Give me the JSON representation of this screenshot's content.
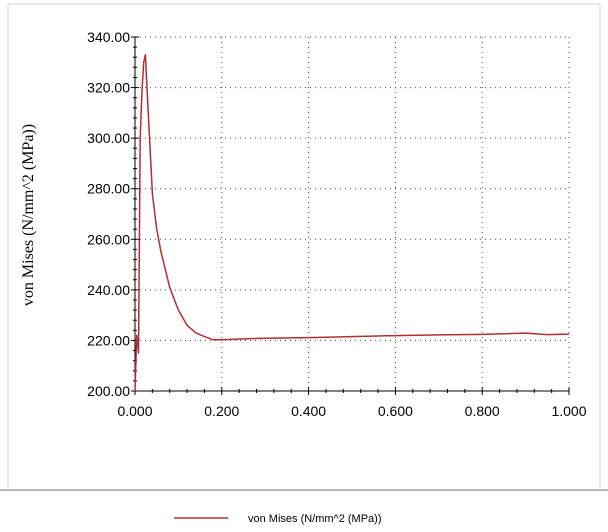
{
  "chart_data": {
    "type": "line",
    "title": "",
    "xlabel": "",
    "ylabel": "von Mises (N/mm^2 (MPa))",
    "xlim": [
      0,
      1
    ],
    "ylim": [
      200,
      340
    ],
    "x_ticks": [
      "0.000",
      "0.200",
      "0.400",
      "0.600",
      "0.800",
      "1.000"
    ],
    "y_ticks": [
      "200.00",
      "220.00",
      "240.00",
      "260.00",
      "280.00",
      "300.00",
      "320.00",
      "340.00"
    ],
    "grid": true,
    "legend_position": "bottom-center",
    "series": [
      {
        "name": "von Mises (N/mm^2 (MPa))",
        "color": "#b03030",
        "x": [
          0.0,
          0.004,
          0.008,
          0.012,
          0.016,
          0.02,
          0.024,
          0.03,
          0.04,
          0.05,
          0.06,
          0.08,
          0.1,
          0.12,
          0.14,
          0.16,
          0.18,
          0.2,
          0.25,
          0.3,
          0.4,
          0.5,
          0.6,
          0.7,
          0.8,
          0.9,
          0.95,
          1.0
        ],
        "y": [
          200,
          222,
          215,
          300,
          318,
          330,
          333,
          312,
          278,
          264,
          255,
          241,
          232,
          226,
          223,
          221.5,
          220.3,
          220.3,
          220.6,
          220.9,
          221.1,
          221.5,
          221.9,
          222.2,
          222.4,
          222.9,
          222.3,
          222.5
        ]
      }
    ]
  }
}
